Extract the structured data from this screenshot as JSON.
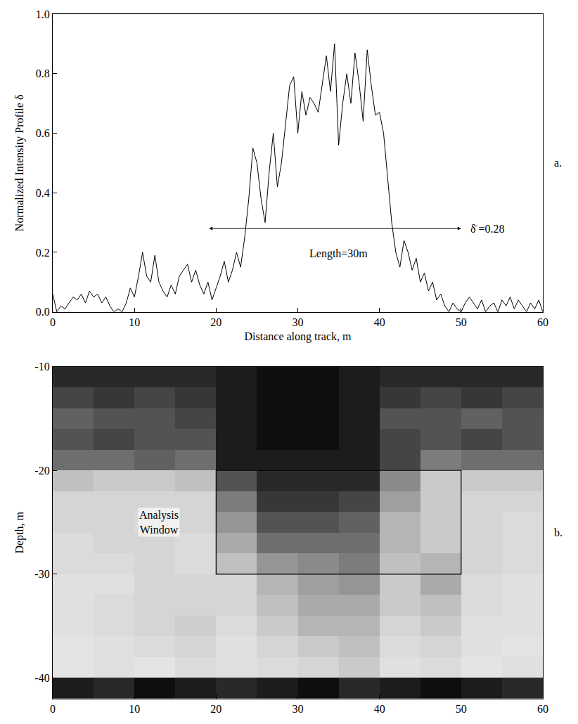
{
  "chart_data": [
    {
      "type": "line",
      "panel": "a.",
      "xlabel": "Distance along track, m",
      "ylabel": "Normalized Intensity Profile δ",
      "color": "#000000",
      "x": [
        0,
        0.5,
        1,
        1.5,
        2,
        2.5,
        3,
        3.5,
        4,
        4.5,
        5,
        5.5,
        6,
        6.5,
        7,
        7.5,
        8,
        8.5,
        9,
        9.5,
        10,
        10.5,
        11,
        11.5,
        12,
        12.5,
        13,
        13.5,
        14,
        14.5,
        15,
        15.5,
        16,
        16.5,
        17,
        17.5,
        18,
        18.5,
        19,
        19.5,
        20,
        20.5,
        21,
        21.5,
        22,
        22.5,
        23,
        23.5,
        24,
        24.5,
        25,
        25.5,
        26,
        26.5,
        27,
        27.5,
        28,
        28.5,
        29,
        29.5,
        30,
        30.5,
        31,
        31.5,
        32,
        32.5,
        33,
        33.5,
        34,
        34.5,
        35,
        35.5,
        36,
        36.5,
        37,
        37.5,
        38,
        38.5,
        39,
        39.5,
        40,
        40.5,
        41,
        41.5,
        42,
        42.5,
        43,
        43.5,
        44,
        44.5,
        45,
        45.5,
        46,
        46.5,
        47,
        47.5,
        48,
        48.5,
        49,
        49.5,
        50,
        50.5,
        51,
        51.5,
        52,
        52.5,
        53,
        53.5,
        54,
        54.5,
        55,
        55.5,
        56,
        56.5,
        57,
        57.5,
        58,
        58.5,
        59,
        59.5,
        60
      ],
      "values": [
        0.06,
        0.0,
        0.02,
        0.01,
        0.03,
        0.05,
        0.04,
        0.06,
        0.03,
        0.07,
        0.05,
        0.06,
        0.03,
        0.05,
        0.02,
        0.0,
        0.01,
        0.0,
        0.03,
        0.08,
        0.05,
        0.12,
        0.2,
        0.12,
        0.1,
        0.19,
        0.1,
        0.07,
        0.05,
        0.09,
        0.06,
        0.12,
        0.14,
        0.16,
        0.1,
        0.14,
        0.09,
        0.06,
        0.1,
        0.04,
        0.08,
        0.12,
        0.17,
        0.1,
        0.14,
        0.2,
        0.15,
        0.25,
        0.38,
        0.55,
        0.5,
        0.38,
        0.3,
        0.47,
        0.6,
        0.42,
        0.5,
        0.63,
        0.76,
        0.79,
        0.6,
        0.74,
        0.66,
        0.72,
        0.7,
        0.67,
        0.77,
        0.86,
        0.74,
        0.9,
        0.56,
        0.7,
        0.8,
        0.7,
        0.87,
        0.77,
        0.64,
        0.88,
        0.76,
        0.66,
        0.67,
        0.6,
        0.45,
        0.3,
        0.2,
        0.15,
        0.24,
        0.2,
        0.14,
        0.18,
        0.1,
        0.13,
        0.07,
        0.1,
        0.04,
        0.06,
        0.02,
        0.0,
        0.03,
        0.01,
        0.0,
        0.03,
        0.05,
        0.03,
        0.01,
        0.04,
        0.0,
        0.02,
        0.03,
        0.0,
        0.04,
        0.02,
        0.05,
        0.01,
        0.04,
        0.02,
        0.0,
        0.03,
        0.01,
        0.04,
        0.0
      ],
      "xlim": [
        0,
        60
      ],
      "xticks": [
        0,
        10,
        20,
        30,
        40,
        50,
        60
      ],
      "ylim": [
        0,
        1
      ],
      "yticks": [
        {
          "value": 0,
          "label": "0.0"
        },
        {
          "value": 0.2,
          "label": "0.2"
        },
        {
          "value": 0.4,
          "label": "0.4"
        },
        {
          "value": 0.6,
          "label": "0.6"
        },
        {
          "value": 0.8,
          "label": "0.8"
        },
        {
          "value": 1,
          "label": "1.0"
        }
      ],
      "arrow": {
        "x": [
          19,
          50
        ],
        "y": 0.28
      },
      "annotations": [
        {
          "text": "Length=30m",
          "x": 35,
          "y": 0.22
        },
        {
          "text": "δ̄ =0.28",
          "x": 51,
          "y": 0.28
        }
      ]
    },
    {
      "type": "heatmap",
      "panel": "b.",
      "ylabel": "Depth, m",
      "x": [
        2.5,
        7.5,
        12.5,
        17.5,
        22.5,
        27.5,
        32.5,
        37.5,
        42.5,
        47.5,
        52.5,
        57.5
      ],
      "y": [
        -41,
        -39,
        -37,
        -35,
        -33,
        -31,
        -29,
        -27,
        -25,
        -23,
        -21,
        -19,
        -17,
        -15,
        -13,
        -11
      ],
      "z": [
        [
          0.9,
          0.85,
          0.95,
          0.9,
          0.85,
          0.9,
          0.95,
          0.85,
          0.9,
          0.95,
          0.9,
          0.85
        ],
        [
          0.08,
          0.1,
          0.08,
          0.12,
          0.1,
          0.12,
          0.15,
          0.2,
          0.1,
          0.12,
          0.08,
          0.1
        ],
        [
          0.08,
          0.1,
          0.12,
          0.15,
          0.1,
          0.15,
          0.2,
          0.25,
          0.12,
          0.15,
          0.1,
          0.08
        ],
        [
          0.1,
          0.12,
          0.15,
          0.18,
          0.12,
          0.2,
          0.3,
          0.3,
          0.15,
          0.2,
          0.1,
          0.1
        ],
        [
          0.1,
          0.12,
          0.15,
          0.15,
          0.15,
          0.25,
          0.35,
          0.35,
          0.2,
          0.25,
          0.12,
          0.1
        ],
        [
          0.1,
          0.1,
          0.15,
          0.15,
          0.15,
          0.3,
          0.4,
          0.45,
          0.2,
          0.35,
          0.12,
          0.1
        ],
        [
          0.12,
          0.12,
          0.15,
          0.12,
          0.25,
          0.45,
          0.5,
          0.55,
          0.25,
          0.3,
          0.15,
          0.12
        ],
        [
          0.12,
          0.15,
          0.15,
          0.12,
          0.35,
          0.6,
          0.6,
          0.6,
          0.3,
          0.2,
          0.15,
          0.12
        ],
        [
          0.15,
          0.15,
          0.12,
          0.15,
          0.45,
          0.7,
          0.7,
          0.65,
          0.3,
          0.2,
          0.15,
          0.12
        ],
        [
          0.15,
          0.15,
          0.15,
          0.15,
          0.55,
          0.8,
          0.8,
          0.75,
          0.4,
          0.2,
          0.15,
          0.15
        ],
        [
          0.25,
          0.2,
          0.2,
          0.25,
          0.7,
          0.85,
          0.85,
          0.85,
          0.5,
          0.2,
          0.2,
          0.2
        ],
        [
          0.6,
          0.6,
          0.65,
          0.6,
          0.9,
          0.9,
          0.9,
          0.9,
          0.75,
          0.55,
          0.6,
          0.6
        ],
        [
          0.7,
          0.75,
          0.7,
          0.7,
          0.9,
          0.95,
          0.95,
          0.9,
          0.75,
          0.7,
          0.75,
          0.7
        ],
        [
          0.65,
          0.7,
          0.7,
          0.75,
          0.9,
          0.95,
          0.95,
          0.9,
          0.7,
          0.7,
          0.65,
          0.7
        ],
        [
          0.75,
          0.8,
          0.75,
          0.8,
          0.9,
          0.95,
          0.95,
          0.9,
          0.8,
          0.75,
          0.8,
          0.75
        ],
        [
          0.85,
          0.85,
          0.85,
          0.85,
          0.9,
          0.95,
          0.95,
          0.9,
          0.85,
          0.85,
          0.85,
          0.85
        ]
      ],
      "zlim": [
        0,
        1
      ],
      "xlim": [
        0,
        60
      ],
      "xticks": [
        0,
        10,
        20,
        30,
        40,
        50,
        60
      ],
      "ylim": [
        -42,
        -10
      ],
      "yticks": [
        -40,
        -30,
        -20,
        -10
      ],
      "analysis_window": {
        "x": [
          20,
          50
        ],
        "y": [
          -30,
          -20
        ]
      },
      "annotations": [
        {
          "text": "Analysis Window",
          "x": 13,
          "y": -25
        }
      ]
    }
  ]
}
